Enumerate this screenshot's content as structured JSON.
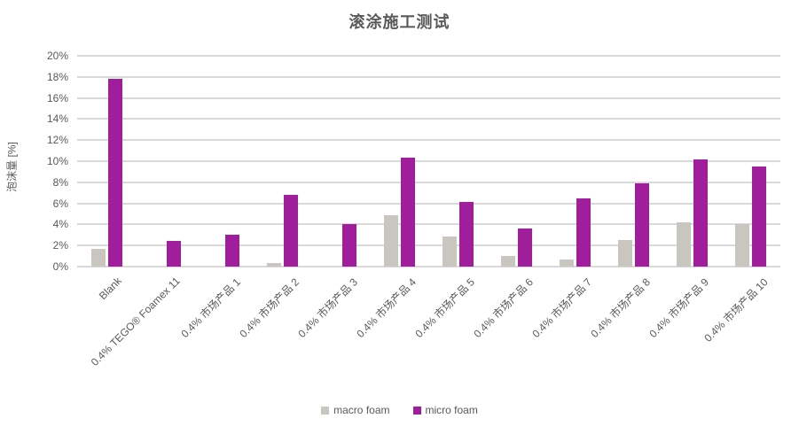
{
  "title": "滚涂施工测试",
  "colors": {
    "macro_foam": "#c9c6c0",
    "micro_foam": "#a01d9b",
    "gridline": "#d9d9d9",
    "axis_text": "#595959",
    "background": "#ffffff"
  },
  "chart_data": {
    "type": "bar",
    "title": "滚涂施工测试",
    "xlabel": "",
    "ylabel": "泡沫量 [%]",
    "ylim": [
      0,
      20
    ],
    "ytick_step": 2,
    "ytick_suffix": "%",
    "grid": true,
    "legend_position": "bottom",
    "categories": [
      "Blank",
      "0.4% TEGO® Foamex 11",
      "0.4% 市场产品 1",
      "0.4% 市场产品 2",
      "0.4% 市场产品 3",
      "0.4% 市场产品 4",
      "0.4% 市场产品 5",
      "0.4% 市场产品 6",
      "0.4% 市场产品 7",
      "0.4% 市场产品 8",
      "0.4% 市场产品 9",
      "0.4% 市场产品 10"
    ],
    "series": [
      {
        "name": "macro foam",
        "color": "#c9c6c0",
        "values": [
          1.7,
          0,
          0,
          0.3,
          0,
          4.9,
          2.9,
          1.0,
          0.7,
          2.5,
          4.2,
          4.0
        ]
      },
      {
        "name": "micro foam",
        "color": "#a01d9b",
        "values": [
          17.8,
          2.4,
          3.0,
          6.8,
          4.0,
          10.3,
          6.1,
          3.6,
          6.5,
          7.9,
          10.2,
          9.5
        ]
      }
    ]
  }
}
